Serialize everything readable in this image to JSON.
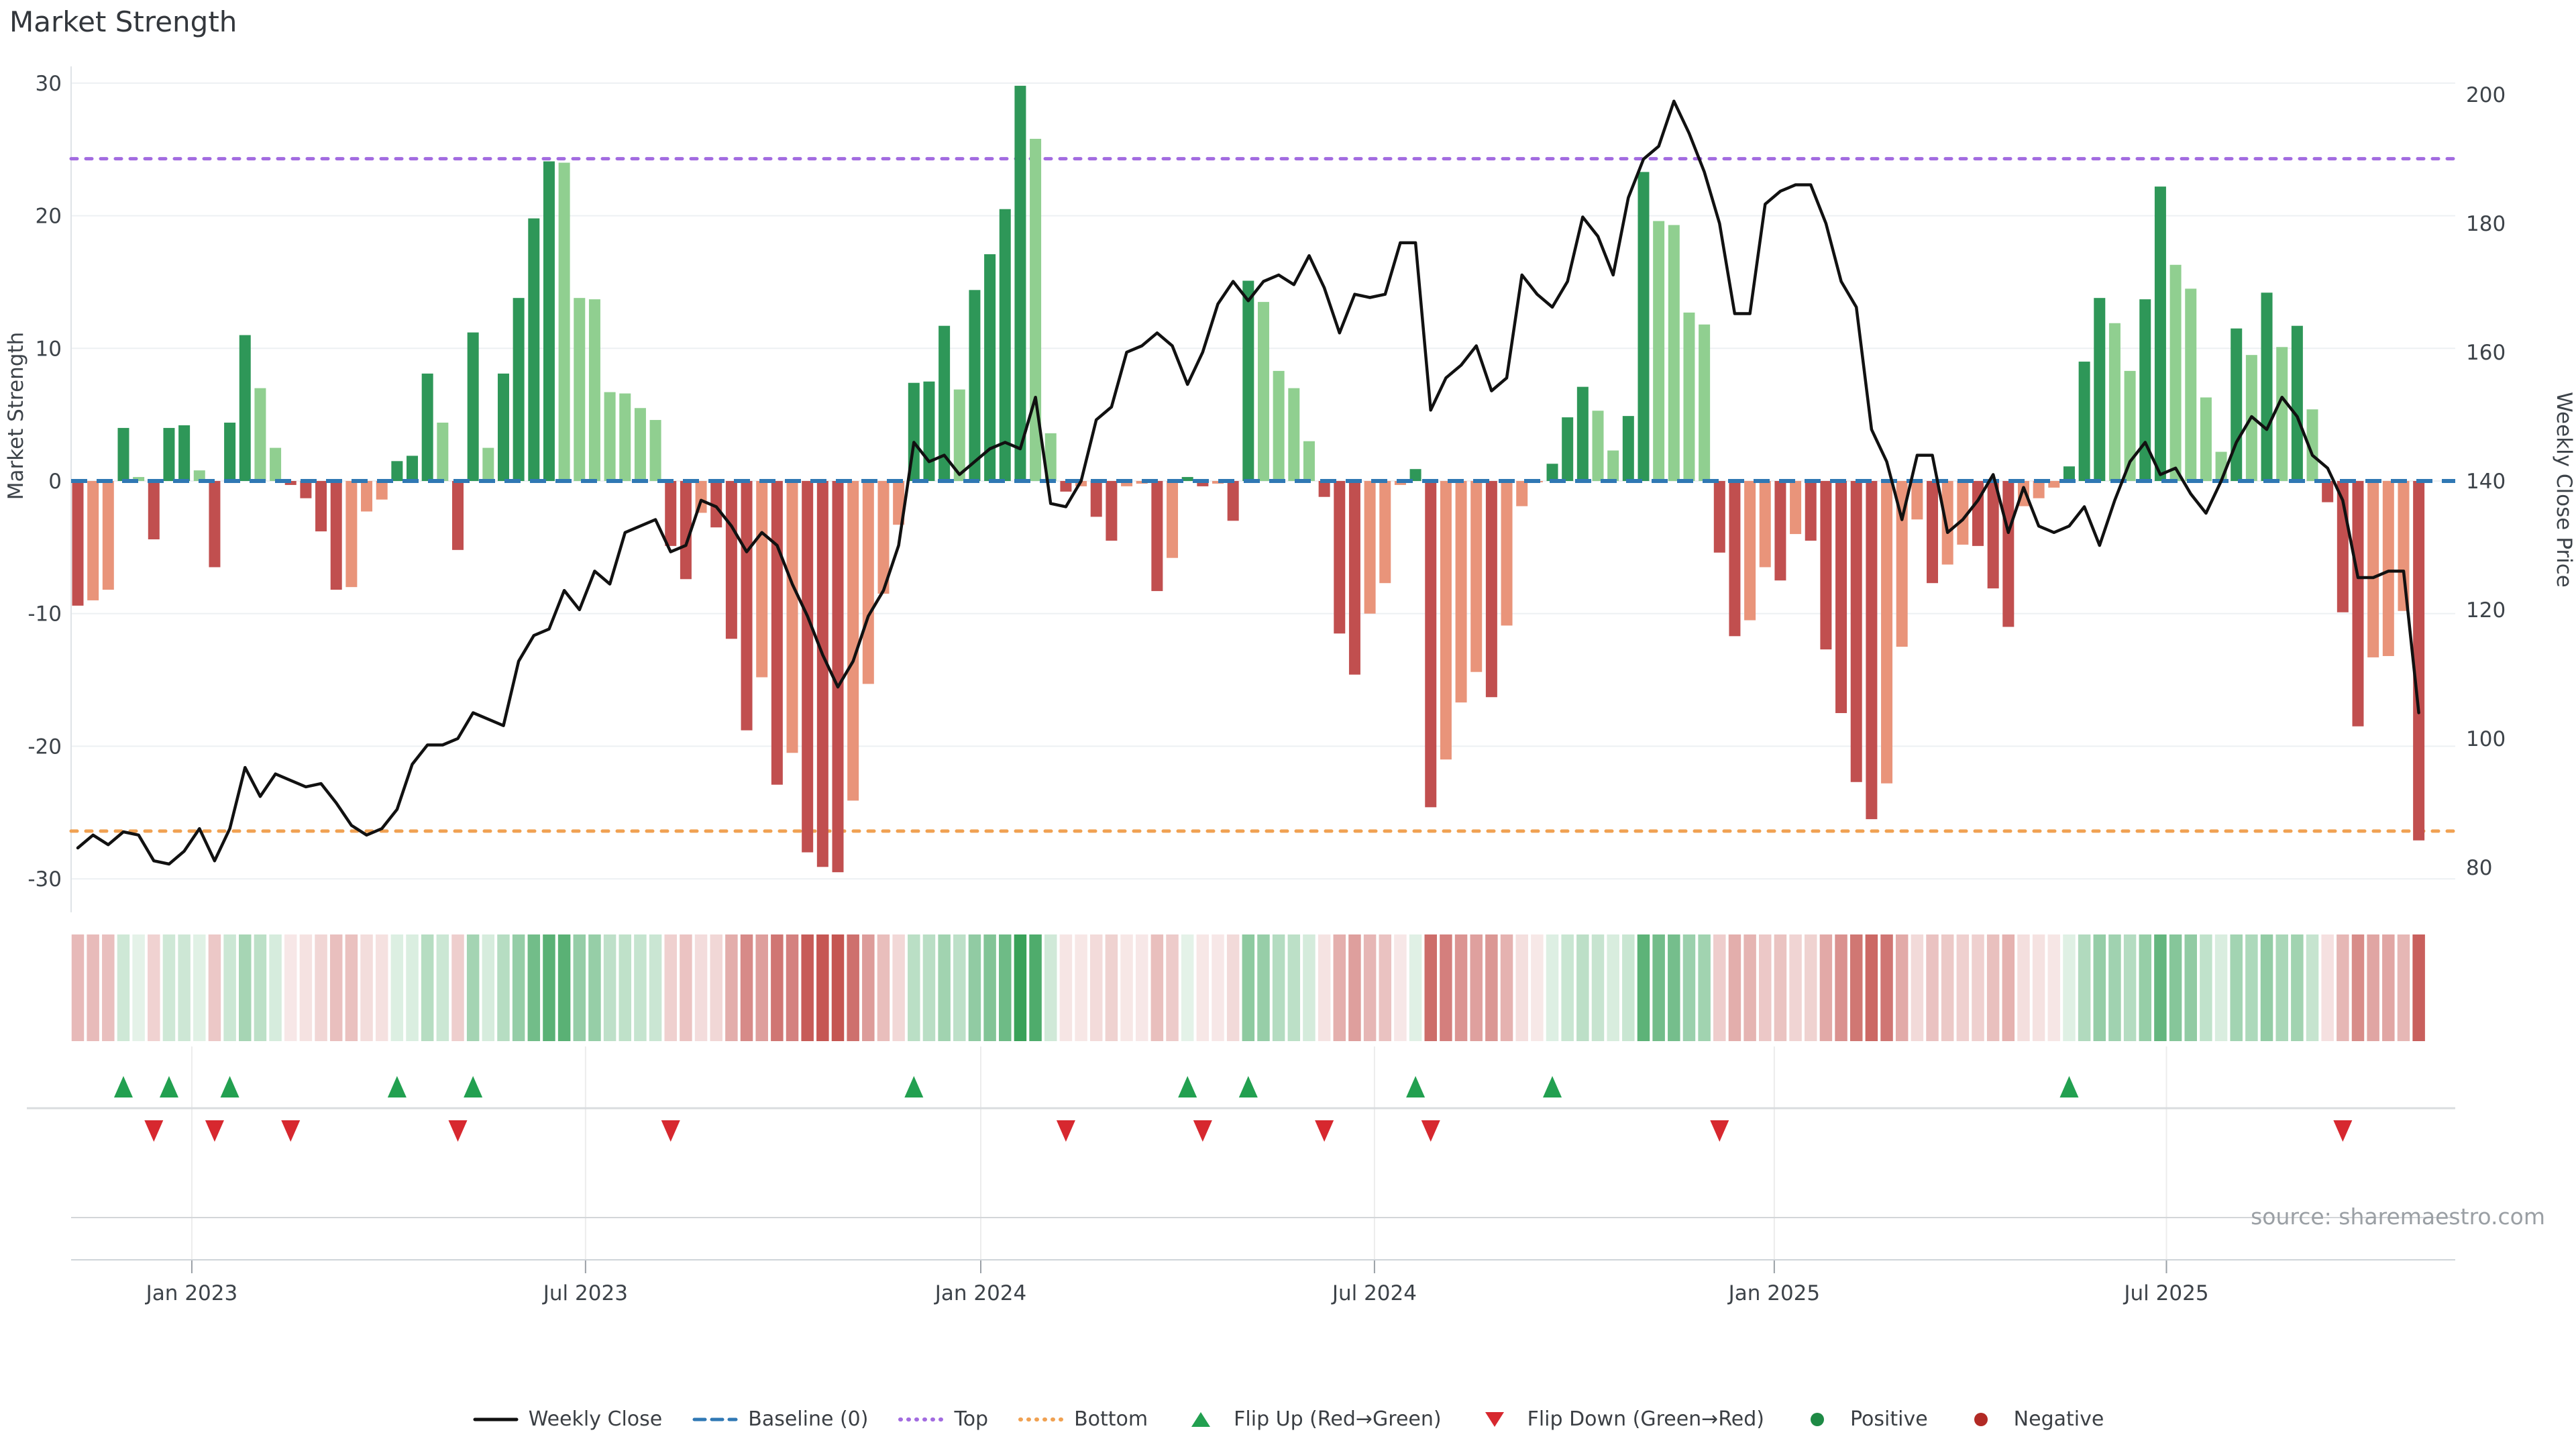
{
  "title": "Market Strength",
  "source": "source: sharemaestro.com",
  "chart_data": {
    "type": "bar",
    "subtype": "combo-bar-line-heatmap",
    "title": "Market Strength",
    "xlabel": "",
    "ylabel_left": "Market Strength",
    "ylabel_right": "Weekly Close Price",
    "x_tick_labels": [
      "Jan 2023",
      "Jul 2023",
      "Jan 2024",
      "Jul 2024",
      "Jan 2025",
      "Jul 2025"
    ],
    "x_tick_weeks": [
      7.5,
      33.4,
      59.4,
      85.3,
      111.6,
      137.4
    ],
    "left_ticks": [
      30,
      20,
      10,
      0,
      -10,
      -20,
      -30
    ],
    "right_ticks": [
      200,
      180,
      160,
      140,
      120,
      100,
      80
    ],
    "ylim_left": [
      -32.5,
      31.5
    ],
    "ylim_right": [
      74,
      206
    ],
    "grid": "horizontal-only",
    "legend_position": "bottom-center",
    "baseline_value": 0,
    "top_line_value": 24.3,
    "bottom_line_value": -26.4,
    "series": [
      {
        "name": "Market Strength",
        "type": "bar",
        "values": [
          -9.4,
          -9,
          -8.2,
          4,
          0.3,
          -4.4,
          4,
          4.2,
          0.8,
          -6.5,
          4.4,
          11,
          7,
          2.5,
          -0.3,
          -1.3,
          -3.8,
          -8.2,
          -8,
          -2.3,
          -1.4,
          1.5,
          1.9,
          8.1,
          4.4,
          -5.2,
          11.2,
          2.5,
          8.1,
          13.8,
          19.8,
          24.1,
          24,
          13.8,
          13.7,
          6.7,
          6.6,
          5.5,
          4.6,
          -4.9,
          -7.4,
          -2.4,
          -3.5,
          -11.9,
          -18.8,
          -14.8,
          -22.9,
          -20.5,
          -28,
          -29.1,
          -29.5,
          -24.1,
          -15.3,
          -8.5,
          -3.3,
          7.4,
          7.5,
          11.7,
          6.9,
          14.4,
          17.1,
          20.5,
          29.8,
          25.8,
          3.6,
          -0.8,
          -0.4,
          -2.7,
          -4.5,
          -0.4,
          -0.2,
          -8.3,
          -5.8,
          0.3,
          -0.4,
          -0.2,
          -3,
          15.1,
          13.5,
          8.3,
          7,
          3,
          -1.2,
          -11.5,
          -14.6,
          -10,
          -7.7,
          -0.3,
          0.9,
          -24.6,
          -21,
          -16.7,
          -14.4,
          -16.3,
          -10.9,
          -1.9,
          -0.1,
          1.3,
          4.8,
          7.1,
          5.3,
          2.3,
          4.9,
          23.3,
          19.6,
          19.3,
          12.7,
          11.8,
          -5.4,
          -11.7,
          -10.5,
          -6.5,
          -7.5,
          -4,
          -4.5,
          -12.7,
          -17.5,
          -22.7,
          -25.5,
          -22.8,
          -12.5,
          -2.9,
          -7.7,
          -6.3,
          -4.8,
          -4.9,
          -8.1,
          -11,
          -1.9,
          -1.3,
          -0.5,
          1.1,
          9,
          13.8,
          11.9,
          8.3,
          13.7,
          22.2,
          16.3,
          14.5,
          6.3,
          2.2,
          11.5,
          9.5,
          14.2,
          10.1,
          11.7,
          5.4,
          -1.6,
          -9.9,
          -18.5,
          -13.3,
          -13.2,
          -9.8,
          -27.1
        ]
      },
      {
        "name": "Weekly Close",
        "type": "line",
        "values": [
          83,
          85,
          83.5,
          85.5,
          85,
          81,
          80.5,
          82.5,
          86,
          81,
          86,
          95.5,
          91,
          94.5,
          93.5,
          92.5,
          93,
          90,
          86.5,
          85,
          86,
          89,
          96,
          99,
          99,
          100,
          104,
          103,
          102,
          112,
          116,
          117,
          123,
          120,
          126,
          124,
          132,
          133,
          134,
          129,
          130,
          137,
          136,
          133,
          129,
          132,
          130,
          124,
          119,
          113,
          108,
          112,
          119,
          123,
          130,
          146,
          143,
          144,
          141,
          143,
          145,
          146,
          145,
          153,
          136.5,
          136,
          140,
          149.5,
          151.5,
          160,
          161,
          163,
          161,
          155,
          160,
          167.5,
          171,
          168,
          171,
          172,
          170.5,
          175,
          170,
          163,
          169,
          168.5,
          169,
          177,
          177,
          151,
          156,
          158,
          161,
          154,
          156,
          172,
          169,
          167,
          171,
          181,
          178,
          172,
          184,
          190,
          192,
          199,
          194,
          188,
          180,
          166,
          166,
          183,
          185,
          186,
          186,
          180,
          171,
          167,
          148,
          143,
          134,
          144,
          144,
          132,
          134,
          137,
          141,
          132,
          139,
          133,
          132,
          133,
          136,
          130,
          137,
          143,
          146,
          141,
          142,
          138,
          135,
          140,
          146,
          150,
          148,
          153,
          150,
          144,
          142,
          137,
          125,
          125,
          126,
          126,
          104
        ]
      }
    ],
    "flip_up_weeks": [
      3,
      6,
      10,
      21,
      26,
      55,
      73,
      77,
      88,
      97,
      131
    ],
    "flip_down_weeks": [
      5,
      9,
      14,
      25,
      39,
      65,
      74,
      82,
      89,
      108,
      149
    ]
  },
  "legend": {
    "items": [
      {
        "marker": "line",
        "label": "Weekly Close"
      },
      {
        "marker": "dash",
        "label": "Baseline (0)"
      },
      {
        "marker": "dots-top",
        "label": "Top"
      },
      {
        "marker": "dots-bot",
        "label": "Bottom"
      },
      {
        "marker": "tri-up",
        "label": "Flip Up (Red→Green)"
      },
      {
        "marker": "tri-down",
        "label": "Flip Down (Green→Red)"
      },
      {
        "marker": "dot-pos",
        "label": "Positive"
      },
      {
        "marker": "dot-neg",
        "label": "Negative"
      }
    ]
  },
  "colors": {
    "bar_positive_dark": "#2e9758",
    "bar_positive_light": "#90cf90",
    "bar_negative_dark": "#c14f4f",
    "bar_negative_light": "#e9947a",
    "heat_positive": "#37a158",
    "heat_negative": "#c4524e",
    "line": "#111111",
    "baseline": "#3078b4",
    "top_line": "#a26be0",
    "bottom_line": "#f0a152",
    "flip_up": "#22a050",
    "flip_down": "#d7282f",
    "positive_dot": "#1e8a45",
    "negative_dot": "#b22a25",
    "grid": "#edf0f3",
    "axis_text": "#3d4349",
    "spine": "#dfe3e7",
    "row_divider": "#d9dcdf"
  }
}
